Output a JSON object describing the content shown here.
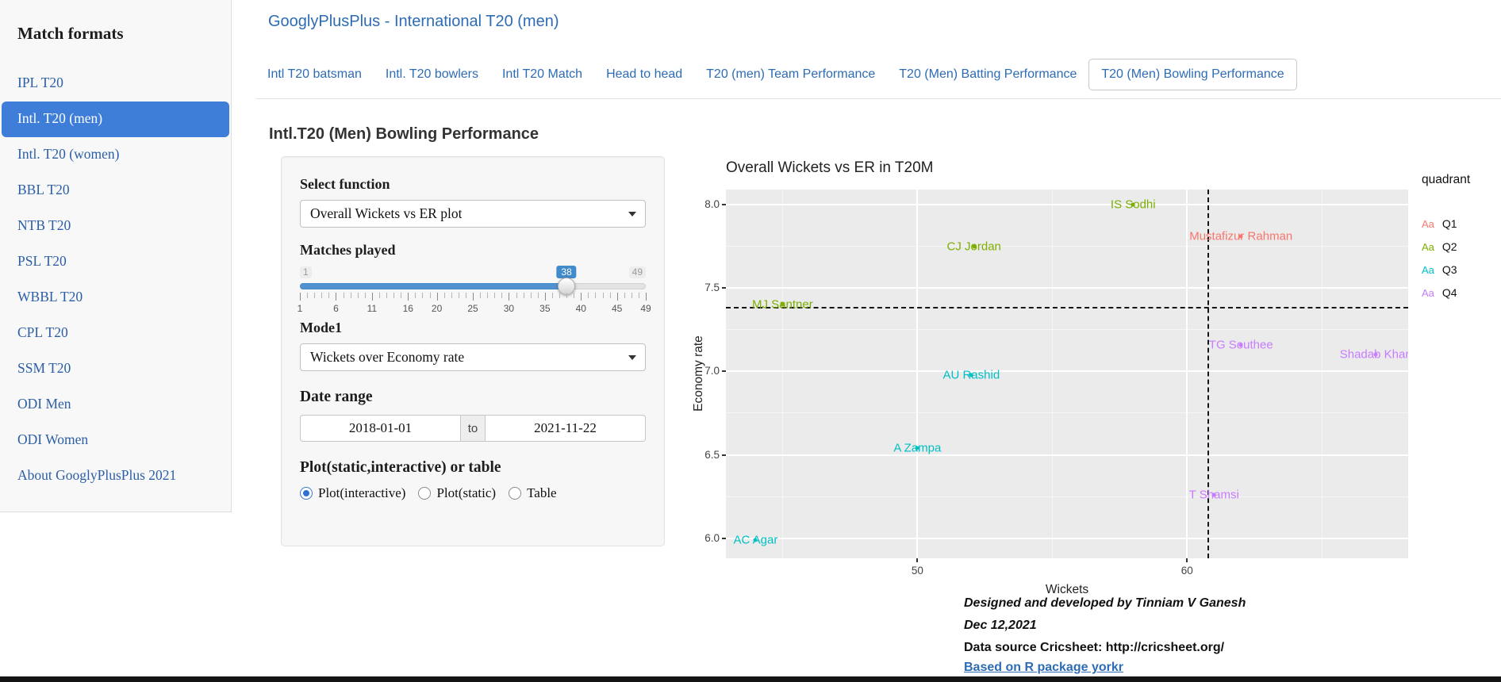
{
  "colors": {
    "accent_blue": "#2d6cb5",
    "active_item_bg": "#3e7dd8",
    "slider_blue": "#428bca"
  },
  "sidebar": {
    "heading": "Match formats",
    "items": [
      {
        "label": "IPL T20",
        "active": false
      },
      {
        "label": "Intl. T20 (men)",
        "active": true
      },
      {
        "label": "Intl. T20 (women)",
        "active": false
      },
      {
        "label": "BBL T20",
        "active": false
      },
      {
        "label": "NTB T20",
        "active": false
      },
      {
        "label": "PSL T20",
        "active": false
      },
      {
        "label": "WBBL T20",
        "active": false
      },
      {
        "label": "CPL T20",
        "active": false
      },
      {
        "label": "SSM T20",
        "active": false
      },
      {
        "label": "ODI Men",
        "active": false
      },
      {
        "label": "ODI Women",
        "active": false
      },
      {
        "label": "About GooglyPlusPlus 2021",
        "active": false
      }
    ]
  },
  "header": {
    "title": "GooglyPlusPlus - International T20 (men)"
  },
  "tabs": [
    {
      "label": "Intl T20 batsman",
      "active": false
    },
    {
      "label": "Intl. T20 bowlers",
      "active": false
    },
    {
      "label": "Intl T20 Match",
      "active": false
    },
    {
      "label": "Head to head",
      "active": false
    },
    {
      "label": "T20 (men) Team Performance",
      "active": false
    },
    {
      "label": "T20 (Men) Batting Performance",
      "active": false
    },
    {
      "label": "T20 (Men) Bowling Performance",
      "active": true
    }
  ],
  "section_heading": "Intl.T20 (Men) Bowling Performance",
  "controls": {
    "select_function": {
      "label": "Select function",
      "value": "Overall Wickets vs ER plot"
    },
    "matches_played": {
      "label": "Matches played",
      "min": 1,
      "max": 49,
      "value": 38,
      "ticks": [
        1,
        6,
        11,
        16,
        20,
        25,
        30,
        35,
        40,
        45,
        49
      ]
    },
    "mode": {
      "label": "Mode1",
      "value": "Wickets over Economy rate"
    },
    "date_range": {
      "label": "Date range",
      "start": "2018-01-01",
      "separator": "to",
      "end": "2021-11-22"
    },
    "output_type": {
      "label": "Plot(static,interactive) or table",
      "options": [
        {
          "label": "Plot(interactive)",
          "selected": true
        },
        {
          "label": "Plot(static)",
          "selected": false
        },
        {
          "label": "Table",
          "selected": false
        }
      ]
    }
  },
  "chart_data": {
    "type": "scatter",
    "title": "Overall Wickets vs ER in T20M",
    "xlabel": "Wickets",
    "ylabel": "Economy rate",
    "xlim": [
      42.9,
      68.2
    ],
    "ylim": [
      5.88,
      8.09
    ],
    "x_ticks": [
      50,
      60
    ],
    "x_tick_labels": [
      "50",
      "60"
    ],
    "x_minor": [
      45,
      55,
      65
    ],
    "y_ticks": [
      6.0,
      6.5,
      7.0,
      7.5,
      8.0
    ],
    "y_tick_labels": [
      "6.0",
      "6.5",
      "7.0",
      "7.5",
      "8.0"
    ],
    "y_minor": [
      6.25,
      6.75,
      7.25,
      7.75
    ],
    "threshold_lines": {
      "horizontal_er": 7.38,
      "vertical_wickets": 60.8
    },
    "legend_title": "quadrant",
    "legend_key_text": "Aa",
    "series": [
      {
        "name": "Q1",
        "color": "#F8766D",
        "points": [
          {
            "label": "Mustafizur Rahman",
            "x": 62.0,
            "y": 7.81
          }
        ]
      },
      {
        "name": "Q2",
        "color": "#7CAE00",
        "points": [
          {
            "label": "IS Sodhi",
            "x": 58.0,
            "y": 8.0
          },
          {
            "label": "CJ Jordan",
            "x": 52.1,
            "y": 7.75
          },
          {
            "label": "MJ Santner",
            "x": 45.0,
            "y": 7.4
          }
        ]
      },
      {
        "name": "Q3",
        "color": "#00BFC4",
        "points": [
          {
            "label": "AU Rashid",
            "x": 52.0,
            "y": 6.98
          },
          {
            "label": "A Zampa",
            "x": 50.0,
            "y": 6.54
          },
          {
            "label": "AC Agar",
            "x": 44.0,
            "y": 5.99
          }
        ]
      },
      {
        "name": "Q4",
        "color": "#C77CFF",
        "points": [
          {
            "label": "TG Southee",
            "x": 62.0,
            "y": 7.16
          },
          {
            "label": "Shadab Khan",
            "x": 67.0,
            "y": 7.1
          },
          {
            "label": "T Shamsi",
            "x": 61.0,
            "y": 6.26
          }
        ]
      }
    ]
  },
  "footer": {
    "line1": "Designed and developed by Tinniam V Ganesh",
    "line2": "Dec 12,2021",
    "line3": "Data source Cricsheet: http://cricsheet.org/",
    "line4": "Based on R package yorkr"
  }
}
